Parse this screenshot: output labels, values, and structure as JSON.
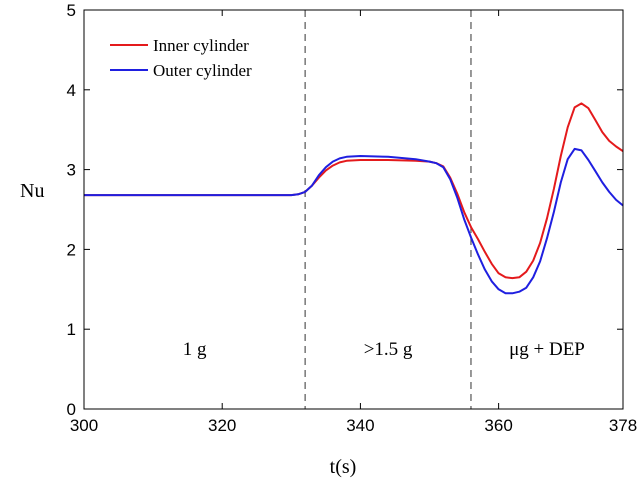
{
  "chart_data": {
    "type": "line",
    "xlabel": "t(s)",
    "ylabel": "Nu",
    "xlim": [
      300,
      378
    ],
    "ylim": [
      0,
      5
    ],
    "xticks": [
      300,
      320,
      340,
      360,
      378
    ],
    "yticks": [
      0,
      1,
      2,
      3,
      4,
      5
    ],
    "grid": false,
    "legend_position": "top-left",
    "vlines": [
      332,
      356
    ],
    "region_labels": [
      {
        "text": "1 g",
        "x": 316,
        "y": 0.75
      },
      {
        "text": ">1.5 g",
        "x": 344,
        "y": 0.75
      },
      {
        "text": "μg + DEP",
        "x": 367,
        "y": 0.75
      }
    ],
    "series": [
      {
        "name": "Inner cylinder",
        "color": "#e41a1c",
        "x": [
          300,
          310,
          320,
          330,
          331,
          332,
          333,
          334,
          335,
          336,
          337,
          338,
          340,
          344,
          348,
          350,
          351,
          352,
          353,
          354,
          355,
          356,
          357,
          358,
          359,
          360,
          361,
          362,
          363,
          364,
          365,
          366,
          367,
          368,
          369,
          370,
          371,
          372,
          373,
          374,
          375,
          376,
          377,
          378
        ],
        "values": [
          2.68,
          2.68,
          2.68,
          2.68,
          2.69,
          2.72,
          2.8,
          2.9,
          2.99,
          3.05,
          3.09,
          3.11,
          3.12,
          3.12,
          3.11,
          3.1,
          3.08,
          3.04,
          2.9,
          2.7,
          2.47,
          2.28,
          2.13,
          1.97,
          1.82,
          1.7,
          1.65,
          1.64,
          1.65,
          1.72,
          1.86,
          2.08,
          2.39,
          2.76,
          3.17,
          3.53,
          3.78,
          3.83,
          3.77,
          3.62,
          3.47,
          3.36,
          3.29,
          3.23
        ]
      },
      {
        "name": "Outer cylinder",
        "color": "#1f1fe0",
        "x": [
          300,
          310,
          320,
          330,
          331,
          332,
          333,
          334,
          335,
          336,
          337,
          338,
          340,
          344,
          348,
          350,
          351,
          352,
          353,
          354,
          355,
          356,
          357,
          358,
          359,
          360,
          361,
          362,
          363,
          364,
          365,
          366,
          367,
          368,
          369,
          370,
          371,
          372,
          373,
          374,
          375,
          376,
          377,
          378
        ],
        "values": [
          2.68,
          2.68,
          2.68,
          2.68,
          2.69,
          2.72,
          2.8,
          2.93,
          3.03,
          3.1,
          3.14,
          3.16,
          3.17,
          3.16,
          3.13,
          3.1,
          3.08,
          3.03,
          2.88,
          2.65,
          2.38,
          2.15,
          1.94,
          1.75,
          1.6,
          1.5,
          1.45,
          1.45,
          1.47,
          1.52,
          1.65,
          1.85,
          2.14,
          2.47,
          2.84,
          3.13,
          3.26,
          3.24,
          3.12,
          2.98,
          2.84,
          2.72,
          2.62,
          2.55
        ]
      }
    ]
  }
}
